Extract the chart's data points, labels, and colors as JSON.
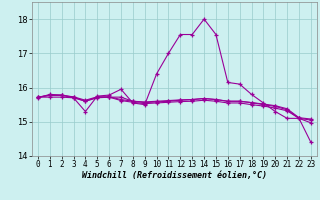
{
  "xlabel": "Windchill (Refroidissement éolien,°C)",
  "background_color": "#cdf0f0",
  "line_color": "#990099",
  "grid_color": "#99cccc",
  "xlim": [
    -0.5,
    23.5
  ],
  "ylim": [
    14.0,
    18.5
  ],
  "yticks": [
    14,
    15,
    16,
    17,
    18
  ],
  "xticks": [
    0,
    1,
    2,
    3,
    4,
    5,
    6,
    7,
    8,
    9,
    10,
    11,
    12,
    13,
    14,
    15,
    16,
    17,
    18,
    19,
    20,
    21,
    22,
    23
  ],
  "series1": [
    15.7,
    15.8,
    15.78,
    15.7,
    15.3,
    15.75,
    15.78,
    15.95,
    15.55,
    15.5,
    16.4,
    17.0,
    17.55,
    17.55,
    18.0,
    17.55,
    16.15,
    16.1,
    15.8,
    15.55,
    15.3,
    15.1,
    15.1,
    14.4
  ],
  "series2": [
    15.72,
    15.78,
    15.78,
    15.72,
    15.6,
    15.72,
    15.72,
    15.72,
    15.6,
    15.58,
    15.6,
    15.62,
    15.64,
    15.65,
    15.68,
    15.65,
    15.6,
    15.6,
    15.56,
    15.52,
    15.47,
    15.38,
    15.12,
    15.08
  ],
  "series3": [
    15.72,
    15.77,
    15.77,
    15.73,
    15.63,
    15.73,
    15.73,
    15.65,
    15.6,
    15.56,
    15.58,
    15.6,
    15.63,
    15.65,
    15.68,
    15.65,
    15.6,
    15.6,
    15.56,
    15.5,
    15.45,
    15.35,
    15.1,
    15.05
  ],
  "series4": [
    15.72,
    15.72,
    15.72,
    15.7,
    15.6,
    15.7,
    15.72,
    15.62,
    15.57,
    15.53,
    15.55,
    15.57,
    15.59,
    15.6,
    15.63,
    15.6,
    15.55,
    15.55,
    15.5,
    15.46,
    15.4,
    15.32,
    15.1,
    14.97
  ]
}
